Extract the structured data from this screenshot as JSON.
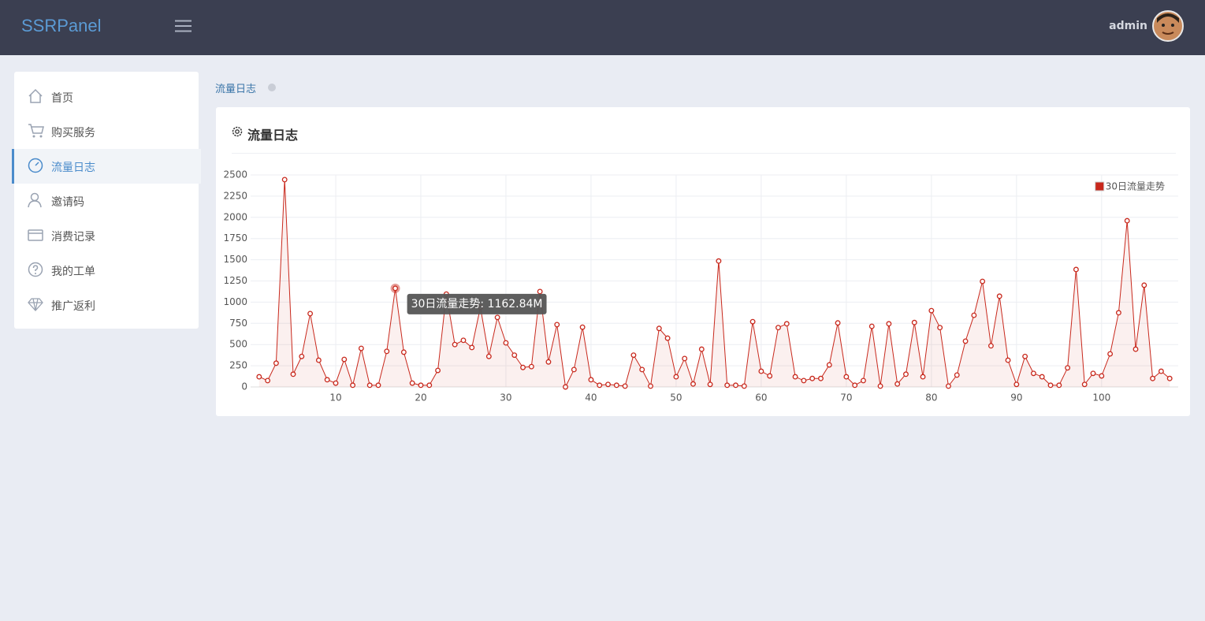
{
  "header": {
    "brand": "SSRPanel",
    "user": "admin"
  },
  "sidebar": {
    "items": [
      "首页",
      "购买服务",
      "流量日志",
      "邀请码",
      "消费记录",
      "我的工单",
      "推广返利"
    ]
  },
  "breadcrumb": "流量日志",
  "panel": {
    "title": "流量日志"
  },
  "chart_data": {
    "type": "line",
    "x": [
      1,
      2,
      3,
      4,
      5,
      6,
      7,
      8,
      9,
      10,
      11,
      12,
      13,
      14,
      15,
      16,
      17,
      18,
      19,
      20,
      21,
      22,
      23,
      24,
      25,
      26,
      27,
      28,
      29,
      30,
      31,
      32,
      33,
      34,
      35,
      36,
      37,
      38,
      39,
      40,
      41,
      42,
      43,
      44,
      45,
      46,
      47,
      48,
      49,
      50,
      51,
      52,
      53,
      54,
      55,
      56,
      57,
      58,
      59,
      60,
      61,
      62,
      63,
      64,
      65,
      66,
      67,
      68,
      69,
      70,
      71,
      72,
      73,
      74,
      75,
      76,
      77,
      78,
      79,
      80,
      81,
      82,
      83,
      84,
      85,
      86,
      87,
      88,
      89,
      90,
      91,
      92,
      93,
      94,
      95,
      96,
      97,
      98,
      99,
      100,
      101,
      102,
      103,
      104,
      105,
      106,
      107,
      108
    ],
    "series": [
      {
        "name": "30日流量走势",
        "color": "#c8281c",
        "values": [
          120,
          75,
          280,
          2445,
          150,
          360,
          865,
          315,
          85,
          45,
          325,
          20,
          455,
          20,
          20,
          420,
          1162.84,
          410,
          45,
          20,
          20,
          195,
          1095,
          500,
          550,
          465,
          940,
          360,
          820,
          520,
          375,
          230,
          240,
          1125,
          295,
          735,
          0,
          205,
          705,
          85,
          20,
          30,
          20,
          10,
          375,
          205,
          10,
          690,
          575,
          120,
          335,
          35,
          445,
          30,
          1485,
          20,
          20,
          10,
          770,
          185,
          130,
          700,
          745,
          120,
          75,
          100,
          100,
          260,
          755,
          120,
          20,
          75,
          715,
          10,
          745,
          35,
          150,
          760,
          120,
          900,
          700,
          10,
          140,
          540,
          845,
          1245,
          485,
          1070,
          315,
          30,
          360,
          160,
          120,
          20,
          20,
          225,
          1385,
          30,
          160,
          130,
          390,
          875,
          1960,
          445,
          1200,
          100,
          185,
          100
        ],
        "value_labels": [
          null,
          null,
          null,
          null,
          null,
          null,
          null,
          null,
          null,
          null,
          null,
          null,
          null,
          null,
          null,
          null,
          "30日流量走势: 1162.84M",
          null,
          null,
          null,
          null,
          null,
          null,
          null,
          null,
          null,
          null,
          null,
          null,
          null,
          null,
          null,
          null,
          null,
          null,
          null,
          null,
          null,
          null,
          null,
          null,
          null,
          null,
          null,
          null,
          null,
          null,
          null,
          null,
          null,
          null,
          null,
          null,
          null,
          null,
          null,
          null,
          null,
          null,
          null,
          null,
          null,
          null,
          null,
          null,
          null,
          null,
          null,
          null,
          null,
          null,
          null,
          null,
          null,
          null,
          null,
          null,
          null,
          null,
          null,
          null,
          null,
          null,
          null,
          null,
          null,
          null,
          null,
          null,
          null,
          null,
          null,
          null,
          null,
          null,
          null,
          null,
          null,
          null,
          null,
          null,
          null,
          null,
          null,
          null,
          null,
          null,
          null
        ]
      }
    ],
    "xlim": [
      0,
      109
    ],
    "xticks": [
      10,
      20,
      30,
      40,
      50,
      60,
      70,
      80,
      90,
      100
    ],
    "ylim": [
      0,
      2500
    ],
    "yticks": [
      0,
      250,
      500,
      750,
      1000,
      1250,
      1500,
      1750,
      2000,
      2250,
      2500
    ],
    "grid": true,
    "legend": "top-right"
  }
}
